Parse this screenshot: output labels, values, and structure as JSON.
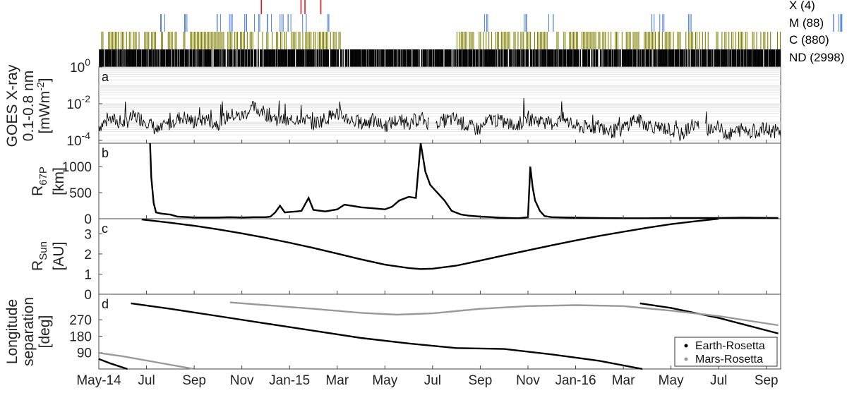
{
  "flare_legend": [
    {
      "label": "X (4)",
      "color": "#e8141c"
    },
    {
      "label": "M (88)",
      "color": "#4a7fe0"
    },
    {
      "label": "C (880)",
      "color": "#808000"
    },
    {
      "label": "ND (2998)",
      "color": "#000000"
    }
  ],
  "x_axis_ticks": [
    "May-14",
    "Jul",
    "Sep",
    "Nov",
    "Jan-15",
    "Mar",
    "May",
    "Jul",
    "Sep",
    "Nov",
    "Jan-16",
    "Mar",
    "May",
    "Jul",
    "Sep"
  ],
  "chart_data": [
    {
      "type": "line",
      "panel": "a",
      "ylabel_lines": [
        "GOES X-ray",
        "0.1-0.8 nm",
        "[mWm-2]"
      ],
      "yscale": "log",
      "ylim": [
        7e-05,
        1
      ],
      "yticks": [
        "10-4",
        "10-2",
        "100"
      ],
      "xlim_months": [
        0,
        17.2
      ],
      "series": [
        {
          "name": "",
          "color": "#000000",
          "points": [
            [
              0.0,
              0.0006
            ],
            [
              0.3,
              0.0015
            ],
            [
              0.6,
              0.0008
            ],
            [
              0.9,
              0.002
            ],
            [
              1.2,
              0.0012
            ],
            [
              1.5,
              0.0003
            ],
            [
              1.8,
              0.0009
            ],
            [
              2.1,
              0.002
            ],
            [
              2.4,
              0.001
            ],
            [
              2.7,
              0.0015
            ],
            [
              3.0,
              0.0008
            ],
            [
              3.3,
              0.0025
            ],
            [
              3.6,
              0.002
            ],
            [
              3.9,
              0.006
            ],
            [
              4.2,
              0.003
            ],
            [
              4.5,
              0.0015
            ],
            [
              4.8,
              0.001
            ],
            [
              5.1,
              0.002
            ],
            [
              5.4,
              0.0008
            ],
            [
              5.7,
              0.0015
            ],
            [
              6.0,
              0.003
            ],
            [
              6.3,
              0.0015
            ],
            [
              6.6,
              0.0008
            ],
            [
              6.9,
              0.0012
            ],
            [
              7.2,
              0.0006
            ],
            [
              7.5,
              0.0012
            ],
            [
              7.8,
              0.0009
            ],
            [
              8.1,
              0.0015
            ],
            [
              8.4,
              0.0008
            ],
            [
              8.7,
              0.0012
            ],
            [
              9.0,
              0.0015
            ],
            [
              9.3,
              0.0006
            ],
            [
              9.6,
              0.0004
            ],
            [
              9.9,
              0.0015
            ],
            [
              10.2,
              0.001
            ],
            [
              10.5,
              0.0006
            ],
            [
              10.8,
              0.0015
            ],
            [
              11.1,
              0.0012
            ],
            [
              11.4,
              0.0008
            ],
            [
              11.7,
              0.0015
            ],
            [
              12.0,
              0.0006
            ],
            [
              12.3,
              0.0005
            ],
            [
              12.6,
              0.0006
            ],
            [
              12.9,
              0.0003
            ],
            [
              13.2,
              0.0004
            ],
            [
              13.5,
              0.0015
            ],
            [
              13.8,
              0.0008
            ],
            [
              14.1,
              0.0005
            ],
            [
              14.4,
              0.0004
            ],
            [
              14.7,
              0.0002
            ],
            [
              15.0,
              0.0008
            ],
            [
              15.3,
              0.0004
            ],
            [
              15.6,
              0.0005
            ],
            [
              15.9,
              0.0002
            ],
            [
              16.2,
              0.0004
            ],
            [
              16.5,
              0.0003
            ],
            [
              16.8,
              0.0004
            ],
            [
              17.1,
              0.0003
            ]
          ]
        }
      ]
    },
    {
      "type": "line",
      "panel": "b",
      "ylabel_lines": [
        "R67P",
        "[km]"
      ],
      "ylim": [
        0,
        1450
      ],
      "yticks": [
        "0",
        "500",
        "1000"
      ],
      "xlim_months": [
        0,
        17.2
      ],
      "series": [
        {
          "name": "",
          "color": "#000000",
          "points": [
            [
              2.15,
              1450
            ],
            [
              2.2,
              800
            ],
            [
              2.3,
              300
            ],
            [
              2.4,
              120
            ],
            [
              2.6,
              100
            ],
            [
              2.8,
              90
            ],
            [
              3.0,
              80
            ],
            [
              3.3,
              40
            ],
            [
              4.0,
              25
            ],
            [
              5.0,
              25
            ],
            [
              5.5,
              30
            ],
            [
              6.0,
              25
            ],
            [
              6.5,
              30
            ],
            [
              7.0,
              30
            ],
            [
              7.2,
              40
            ],
            [
              7.4,
              120
            ],
            [
              7.6,
              250
            ],
            [
              7.8,
              120
            ],
            [
              8.0,
              130
            ],
            [
              8.3,
              140
            ],
            [
              8.5,
              150
            ],
            [
              8.8,
              400
            ],
            [
              9.0,
              170
            ],
            [
              9.5,
              140
            ],
            [
              10.0,
              180
            ],
            [
              10.3,
              270
            ],
            [
              10.6,
              250
            ],
            [
              11.0,
              220
            ],
            [
              11.5,
              200
            ],
            [
              12.0,
              180
            ],
            [
              12.3,
              230
            ],
            [
              12.6,
              350
            ],
            [
              13.0,
              420
            ],
            [
              13.3,
              400
            ],
            [
              13.5,
              1450
            ],
            [
              13.7,
              900
            ],
            [
              13.9,
              650
            ],
            [
              14.2,
              500
            ],
            [
              14.5,
              350
            ],
            [
              14.8,
              150
            ],
            [
              15.2,
              80
            ],
            [
              15.5,
              60
            ],
            [
              16.0,
              40
            ],
            [
              16.5,
              30
            ],
            [
              16.8,
              20
            ],
            [
              17.2,
              15
            ],
            [
              17.6,
              10
            ],
            [
              18.0,
              30
            ],
            [
              18.1,
              1000
            ],
            [
              18.2,
              600
            ],
            [
              18.3,
              350
            ],
            [
              18.5,
              150
            ],
            [
              18.7,
              50
            ],
            [
              19.0,
              30
            ],
            [
              20.0,
              20
            ],
            [
              21.0,
              15
            ],
            [
              22.0,
              10
            ],
            [
              23.0,
              10
            ],
            [
              24.0,
              15
            ],
            [
              25.0,
              15
            ],
            [
              26.0,
              15
            ],
            [
              27.0,
              20
            ],
            [
              28.5,
              15
            ]
          ]
        }
      ]
    },
    {
      "type": "line",
      "panel": "c",
      "ylabel_lines": [
        "RSun",
        "[AU]"
      ],
      "ylim": [
        0,
        3.75
      ],
      "yticks": [
        "0",
        "1",
        "2",
        "3"
      ],
      "xlim_months": [
        0,
        28.5
      ],
      "series": [
        {
          "name": "",
          "color": "#000000",
          "points": [
            [
              1.8,
              3.71
            ],
            [
              3.0,
              3.55
            ],
            [
              4.0,
              3.4
            ],
            [
              5.0,
              3.22
            ],
            [
              6.0,
              3.02
            ],
            [
              7.0,
              2.8
            ],
            [
              8.0,
              2.56
            ],
            [
              9.0,
              2.3
            ],
            [
              10.0,
              2.02
            ],
            [
              11.0,
              1.73
            ],
            [
              12.0,
              1.47
            ],
            [
              13.0,
              1.3
            ],
            [
              13.5,
              1.25
            ],
            [
              14.0,
              1.27
            ],
            [
              15.0,
              1.42
            ],
            [
              16.0,
              1.67
            ],
            [
              17.0,
              1.93
            ],
            [
              18.0,
              2.18
            ],
            [
              19.0,
              2.43
            ],
            [
              20.0,
              2.67
            ],
            [
              21.0,
              2.9
            ],
            [
              22.0,
              3.1
            ],
            [
              23.0,
              3.3
            ],
            [
              24.0,
              3.48
            ],
            [
              25.0,
              3.62
            ],
            [
              26.0,
              3.75
            ]
          ]
        }
      ]
    },
    {
      "type": "line",
      "panel": "d",
      "ylabel_lines": [
        "Longitude",
        "separation",
        "[deg]"
      ],
      "ylim": [
        0,
        410
      ],
      "yticks": [
        "90",
        "180",
        "270"
      ],
      "xlim_months": [
        0,
        28.5
      ],
      "legend": [
        "Earth-Rosetta",
        "Mars-Rosetta"
      ],
      "series": [
        {
          "name": "Earth-Rosetta",
          "color": "#000000",
          "points": [
            [
              0.0,
              55
            ],
            [
              0.5,
              30
            ],
            [
              1.2,
              0
            ]
          ]
        },
        {
          "name": "Earth-Rosetta",
          "color": "#000000",
          "points": [
            [
              1.35,
              360
            ],
            [
              3.0,
              330
            ],
            [
              5.0,
              290
            ],
            [
              7.0,
              250
            ],
            [
              9.0,
              210
            ],
            [
              11.0,
              170
            ],
            [
              13.0,
              140
            ],
            [
              15.0,
              115
            ],
            [
              17.0,
              110
            ],
            [
              19.0,
              80
            ],
            [
              21.0,
              45
            ],
            [
              22.8,
              0
            ]
          ]
        },
        {
          "name": "Earth-Rosetta",
          "color": "#000000",
          "points": [
            [
              22.7,
              360
            ],
            [
              24.0,
              335
            ],
            [
              26.0,
              280
            ],
            [
              28.5,
              195
            ]
          ]
        },
        {
          "name": "Mars-Rosetta",
          "color": "#999999",
          "points": [
            [
              0.0,
              88
            ],
            [
              1.0,
              70
            ],
            [
              2.5,
              35
            ],
            [
              4.0,
              0
            ]
          ]
        },
        {
          "name": "Mars-Rosetta",
          "color": "#999999",
          "points": [
            [
              5.5,
              365
            ],
            [
              7.0,
              350
            ],
            [
              9.0,
              330
            ],
            [
              11.0,
              308
            ],
            [
              12.5,
              298
            ],
            [
              14.0,
              305
            ],
            [
              16.0,
              330
            ],
            [
              18.0,
              345
            ],
            [
              20.0,
              350
            ],
            [
              22.0,
              345
            ],
            [
              24.0,
              320
            ],
            [
              26.0,
              290
            ],
            [
              28.5,
              240
            ]
          ]
        }
      ]
    },
    {
      "type": "heatmap",
      "panel": "flare-strip",
      "rows": [
        "X (4)",
        "M (88)",
        "C (880)",
        "ND (2998)"
      ],
      "events_months": {
        "X": [
          4.1,
          5.1,
          5.2,
          5.6
        ],
        "M": [
          1.6,
          2.2,
          3.0,
          3.3,
          3.7,
          4.0,
          4.3,
          4.6,
          4.8,
          5.2,
          5.8,
          9.8,
          10.8,
          11.4,
          14.0,
          14.2,
          14.9,
          18.6,
          18.7
        ],
        "C_ranges": [
          [
            0.0,
            6.1
          ],
          [
            9.0,
            17.2
          ]
        ],
        "ND_ranges": [
          [
            0.0,
            17.2
          ]
        ]
      }
    }
  ]
}
